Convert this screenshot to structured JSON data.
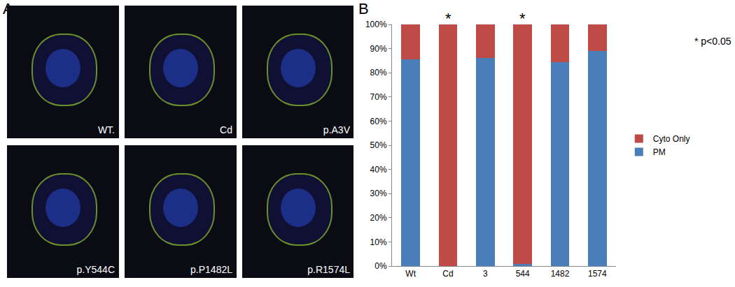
{
  "panel_labels": [
    "A",
    "B"
  ],
  "images": [
    "WT.",
    "Cd",
    "p.A3V",
    "p.Y544C",
    "p.P1482L",
    "p.R1574L"
  ],
  "chart_data": {
    "type": "bar",
    "stacked": true,
    "categories": [
      "Wt",
      "Cd",
      "3",
      "544",
      "1482",
      "1574"
    ],
    "series": [
      {
        "name": "PM",
        "color": "#4a7ebb",
        "values": [
          85.5,
          0,
          86,
          1,
          84.5,
          89
        ]
      },
      {
        "name": "Cyto Only",
        "color": "#be4b48",
        "values": [
          14.5,
          100,
          14,
          99,
          15.5,
          11
        ]
      }
    ],
    "ylim": [
      0,
      100
    ],
    "yticks": [
      {
        "value": 0,
        "label": "0%"
      },
      {
        "value": 10,
        "label": "10%"
      },
      {
        "value": 20,
        "label": "20%"
      },
      {
        "value": 30,
        "label": "30%"
      },
      {
        "value": 40,
        "label": "40%"
      },
      {
        "value": 50,
        "label": "50%"
      },
      {
        "value": 60,
        "label": "60%"
      },
      {
        "value": 70,
        "label": "70%"
      },
      {
        "value": 80,
        "label": "80%"
      },
      {
        "value": 90,
        "label": "90%"
      },
      {
        "value": 100,
        "label": "100%"
      }
    ],
    "grid": false,
    "legend": "right",
    "significance": {
      "symbol": "*",
      "categories": [
        "Cd",
        "544"
      ],
      "note": "* p<0.05"
    }
  }
}
